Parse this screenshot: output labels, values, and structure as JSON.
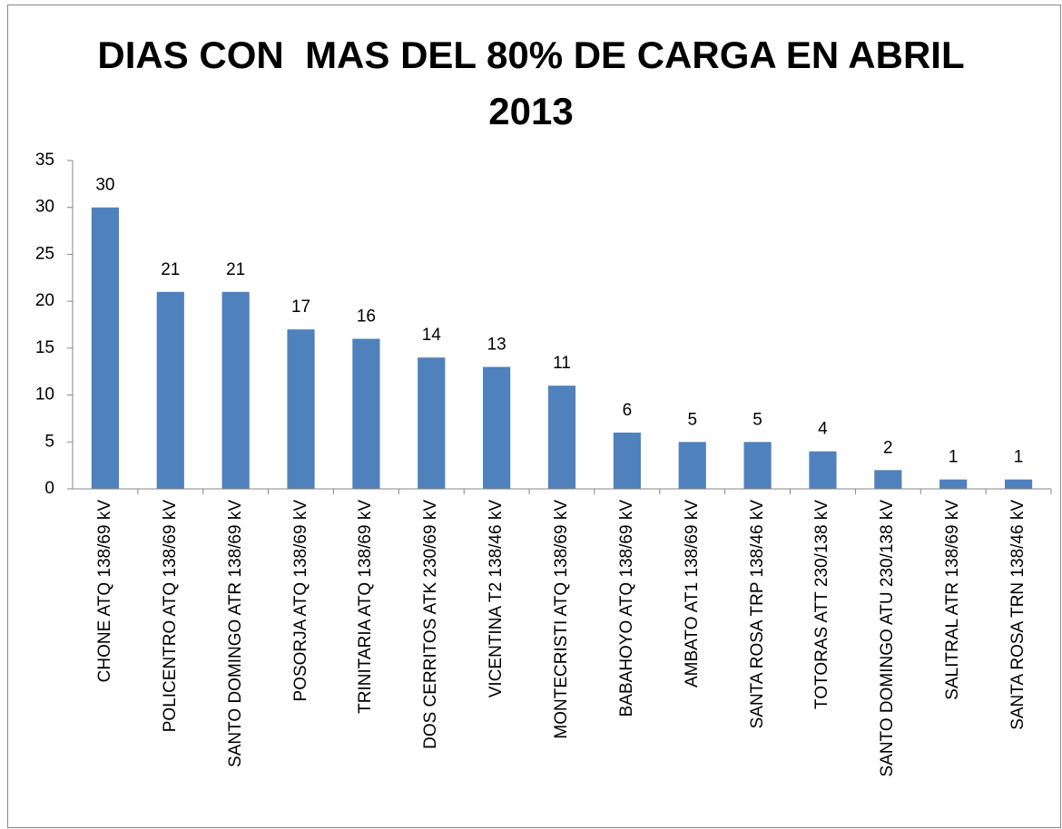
{
  "chart_data": {
    "type": "bar",
    "title": "DIAS CON  MAS DEL 80% DE CARGA EN ABRIL 2013",
    "categories": [
      "CHONE ATQ 138/69 kV",
      "POLICENTRO ATQ 138/69 kV",
      "SANTO DOMINGO ATR 138/69 kV",
      "POSORJA ATQ 138/69 kV",
      "TRINITARIA ATQ 138/69 kV",
      "DOS CERRITOS ATK 230/69 kV",
      "VICENTINA T2 138/46 kV",
      "MONTECRISTI ATQ 138/69 kV",
      "BABAHOYO ATQ 138/69 kV",
      "AMBATO AT1 138/69 kV",
      "SANTA ROSA TRP 138/46 kV",
      "TOTORAS ATT 230/138 kV",
      "SANTO DOMINGO ATU 230/138 kV",
      "SALITRAL ATR 138/69 kV",
      "SANTA ROSA TRN 138/46 kV"
    ],
    "values": [
      30,
      21,
      21,
      17,
      16,
      14,
      13,
      11,
      6,
      5,
      5,
      4,
      2,
      1,
      1
    ],
    "color": "#4f81bd",
    "ylim": [
      0,
      35
    ],
    "yticks": [
      0,
      5,
      10,
      15,
      20,
      25,
      30,
      35
    ],
    "grid": false
  }
}
